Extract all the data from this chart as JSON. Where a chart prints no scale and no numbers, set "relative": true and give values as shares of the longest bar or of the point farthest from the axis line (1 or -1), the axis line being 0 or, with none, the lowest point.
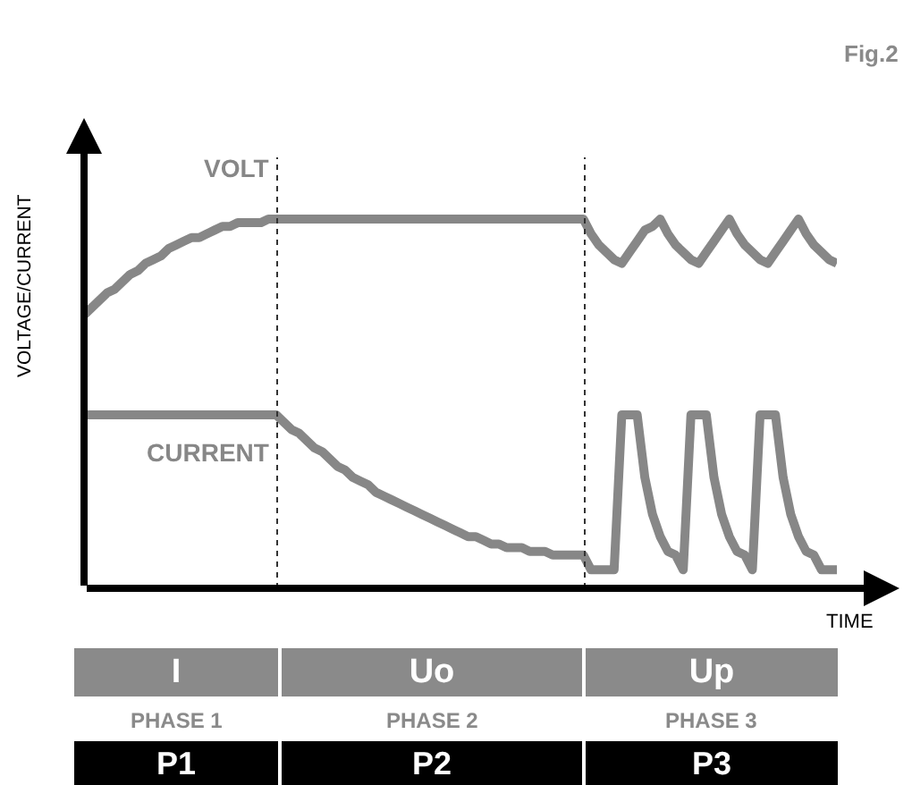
{
  "chart_data": {
    "type": "line",
    "title": "Fig.2",
    "xlabel": "TIME",
    "ylabel": "VOLTAGE/CURRENT",
    "relative": true,
    "categories": [
      null,
      null,
      null,
      null,
      null,
      null,
      null,
      null,
      null,
      null,
      null,
      null,
      null,
      null,
      null,
      null,
      null,
      null,
      null,
      null,
      null,
      null,
      null,
      null,
      null,
      null,
      null,
      null,
      null,
      null,
      null,
      null,
      null,
      null,
      null,
      null,
      null,
      null,
      null,
      null,
      null,
      null,
      null,
      null,
      null,
      null,
      null,
      null,
      null,
      null,
      null,
      null,
      null,
      null,
      null,
      null,
      null,
      null,
      null,
      null,
      null,
      null,
      null,
      null,
      null,
      null,
      null,
      null,
      null,
      null,
      null,
      null,
      null,
      null,
      null,
      null,
      null,
      null,
      null,
      null,
      null,
      null,
      null,
      null,
      null,
      null,
      null,
      null,
      null,
      null,
      null,
      null,
      null,
      null,
      null,
      null,
      null,
      null,
      null
    ],
    "series": [
      {
        "name": "VOLT",
        "color": "#878787",
        "values": [
          0.74,
          0.76,
          0.78,
          0.8,
          0.81,
          0.83,
          0.85,
          0.86,
          0.88,
          0.89,
          0.9,
          0.92,
          0.93,
          0.94,
          0.95,
          0.95,
          0.96,
          0.97,
          0.98,
          0.98,
          0.99,
          0.99,
          0.99,
          0.99,
          1,
          1,
          1,
          1,
          1,
          1,
          1,
          1,
          1,
          1,
          1,
          1,
          1,
          1,
          1,
          1,
          1,
          1,
          1,
          1,
          1,
          1,
          1,
          1,
          1,
          1,
          1,
          1,
          1,
          1,
          1,
          1,
          1,
          1,
          1,
          1,
          1,
          1,
          1,
          1,
          1,
          1,
          0.96,
          0.93,
          0.91,
          0.89,
          0.88,
          0.91,
          0.94,
          0.97,
          0.98,
          1,
          0.96,
          0.93,
          0.91,
          0.89,
          0.88,
          0.91,
          0.94,
          0.97,
          1,
          0.96,
          0.93,
          0.91,
          0.89,
          0.88,
          0.91,
          0.94,
          0.97,
          1,
          0.96,
          0.93,
          0.91,
          0.89,
          0.88
        ]
      },
      {
        "name": "CURRENT",
        "color": "#878787",
        "values": [
          0.47,
          0.47,
          0.47,
          0.47,
          0.47,
          0.47,
          0.47,
          0.47,
          0.47,
          0.47,
          0.47,
          0.47,
          0.47,
          0.47,
          0.47,
          0.47,
          0.47,
          0.47,
          0.47,
          0.47,
          0.47,
          0.47,
          0.47,
          0.47,
          0.47,
          0.47,
          0.45,
          0.43,
          0.42,
          0.4,
          0.38,
          0.37,
          0.35,
          0.33,
          0.32,
          0.3,
          0.29,
          0.28,
          0.26,
          0.25,
          0.24,
          0.23,
          0.22,
          0.21,
          0.2,
          0.19,
          0.18,
          0.17,
          0.16,
          0.15,
          0.14,
          0.14,
          0.13,
          0.12,
          0.12,
          0.11,
          0.11,
          0.11,
          0.1,
          0.1,
          0.1,
          0.09,
          0.09,
          0.09,
          0.09,
          0.09,
          0.05,
          0.05,
          0.05,
          0.05,
          0.47,
          0.47,
          0.47,
          0.3,
          0.2,
          0.14,
          0.1,
          0.09,
          0.05,
          0.47,
          0.47,
          0.47,
          0.3,
          0.2,
          0.14,
          0.1,
          0.09,
          0.05,
          0.47,
          0.47,
          0.47,
          0.3,
          0.2,
          0.14,
          0.1,
          0.09,
          0.05,
          0.05,
          0.05
        ]
      }
    ],
    "annotations": [
      "I",
      "Uo",
      "Up",
      "PHASE 1",
      "PHASE 2",
      "PHASE 3",
      "P1",
      "P2",
      "P3"
    ],
    "legend": false,
    "marker": "none",
    "line_style": "solid"
  }
}
